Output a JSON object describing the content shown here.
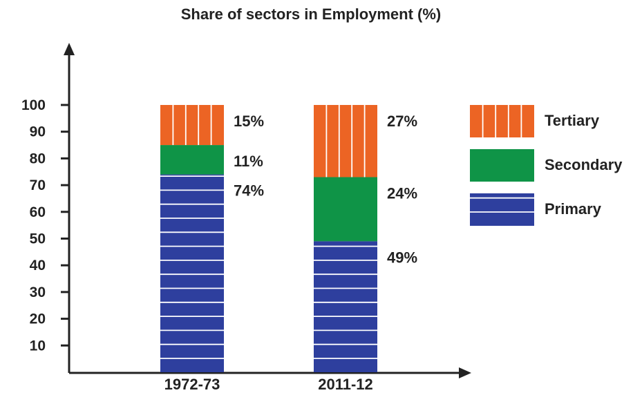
{
  "chart_data": {
    "type": "bar",
    "stacked": true,
    "title": "Share of sectors in Employment (%)",
    "xlabel": "",
    "ylabel": "",
    "categories": [
      "1972-73",
      "2011-12"
    ],
    "series": [
      {
        "name": "Primary",
        "values": [
          74,
          49
        ],
        "labels": [
          "74%",
          "49%"
        ],
        "color": "#2e3f9e",
        "pattern": "horizontal-stripes"
      },
      {
        "name": "Secondary",
        "values": [
          11,
          24
        ],
        "labels": [
          "11%",
          "24%"
        ],
        "color": "#0f9447",
        "pattern": "solid"
      },
      {
        "name": "Tertiary",
        "values": [
          15,
          27
        ],
        "labels": [
          "15%",
          "27%"
        ],
        "color": "#ec6424",
        "pattern": "vertical-stripes"
      }
    ],
    "yticks": [
      10,
      20,
      30,
      40,
      50,
      60,
      70,
      80,
      90,
      100
    ],
    "ylim": [
      0,
      100
    ],
    "grid": false,
    "legend": {
      "placement": "right",
      "order": [
        "Tertiary",
        "Secondary",
        "Primary"
      ]
    }
  }
}
